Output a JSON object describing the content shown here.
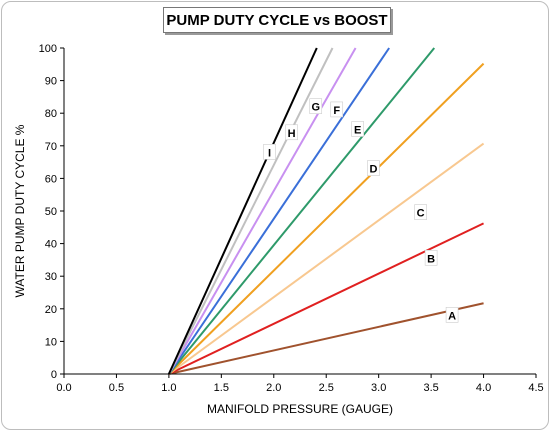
{
  "chart_data": {
    "type": "line",
    "title": "PUMP DUTY CYCLE vs BOOST",
    "xlabel": "MANIFOLD PRESSURE (GAUGE)",
    "ylabel": "WATER PUMP DUTY CYCLE %",
    "xlim": [
      0,
      4.5
    ],
    "ylim": [
      0,
      100
    ],
    "x_ticks": [
      "0.0",
      "0.5",
      "1.0",
      "1.5",
      "2.0",
      "2.5",
      "3.0",
      "3.5",
      "4.0",
      "4.5"
    ],
    "y_ticks": [
      "0",
      "10",
      "20",
      "30",
      "40",
      "50",
      "60",
      "70",
      "80",
      "90",
      "100"
    ],
    "grid": false,
    "legend": "none",
    "series": [
      {
        "name": "A",
        "color": "#a0522d",
        "points": [
          [
            1.0,
            0
          ],
          [
            4.0,
            21.7
          ]
        ],
        "label_at": [
          3.7,
          18
        ]
      },
      {
        "name": "B",
        "color": "#e02020",
        "points": [
          [
            1.0,
            0
          ],
          [
            4.0,
            46.2
          ]
        ],
        "label_at": [
          3.5,
          35.5
        ]
      },
      {
        "name": "C",
        "color": "#f8c890",
        "points": [
          [
            1.0,
            0
          ],
          [
            4.0,
            70.7
          ]
        ],
        "label_at": [
          3.4,
          49.5
        ]
      },
      {
        "name": "D",
        "color": "#f0a020",
        "points": [
          [
            1.0,
            0
          ],
          [
            4.0,
            95.2
          ]
        ],
        "label_at": [
          2.95,
          63
        ]
      },
      {
        "name": "E",
        "color": "#2e9a6a",
        "points": [
          [
            1.0,
            0
          ],
          [
            3.53,
            100
          ]
        ],
        "label_at": [
          2.8,
          75
        ]
      },
      {
        "name": "F",
        "color": "#3a6fd8",
        "points": [
          [
            1.0,
            0
          ],
          [
            3.1,
            100
          ]
        ],
        "label_at": [
          2.6,
          81
        ]
      },
      {
        "name": "G",
        "color": "#c890f0",
        "points": [
          [
            1.0,
            0
          ],
          [
            2.78,
            100
          ]
        ],
        "label_at": [
          2.4,
          82
        ]
      },
      {
        "name": "H",
        "color": "#c0c0c0",
        "points": [
          [
            1.0,
            0
          ],
          [
            2.56,
            100
          ]
        ],
        "label_at": [
          2.17,
          74
        ]
      },
      {
        "name": "I",
        "color": "#000000",
        "points": [
          [
            1.0,
            0
          ],
          [
            2.41,
            100
          ]
        ],
        "label_at": [
          1.96,
          68
        ]
      }
    ]
  }
}
